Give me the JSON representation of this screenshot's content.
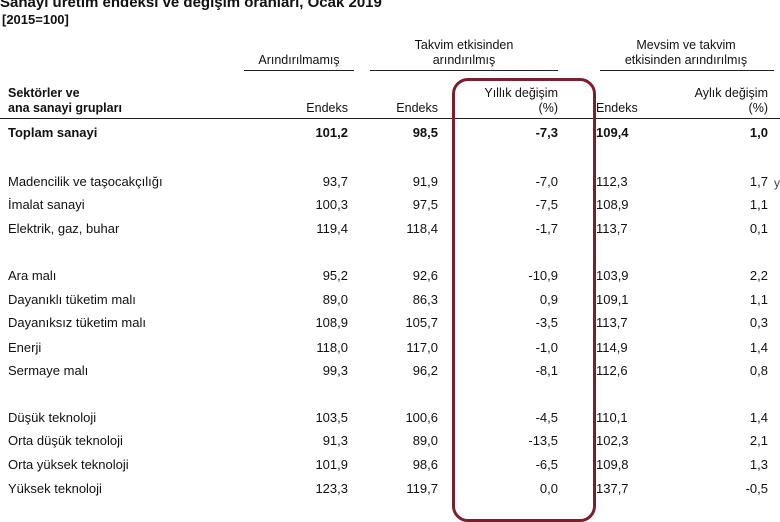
{
  "title": "Sanayi üretim endeksi ve değişim oranları, Ocak 2019",
  "subtitle": "[2015=100]",
  "groups": {
    "g1": "Arındırılmamış",
    "g2_line1": "Takvim etkisinden",
    "g2_line2": "arındırılmış",
    "g3_line1": "Mevsim ve takvim",
    "g3_line2": "etkisinden arındırılmış"
  },
  "columns": {
    "sector_line1": "Sektörler ve",
    "sector_line2": "ana sanayi grupları",
    "c1": "Endeks",
    "c2": "Endeks",
    "c3_line1": "Yıllık değişim",
    "c3_line2": "(%)",
    "c4": "Endeks",
    "c5_line1": "Aylık değişim",
    "c5_line2": "(%)"
  },
  "rows": [
    {
      "label": "Toplam sanayi",
      "v1": "101,2",
      "v2": "98,5",
      "v3": "-7,3",
      "v4": "109,4",
      "v5": "1,0",
      "bold": true
    },
    {
      "label": "Madencilik ve taşocakçılığı",
      "v1": "93,7",
      "v2": "91,9",
      "v3": "-7,0",
      "v4": "112,3",
      "v5": "1,7"
    },
    {
      "label": "İmalat sanayi",
      "v1": "100,3",
      "v2": "97,5",
      "v3": "-7,5",
      "v4": "108,9",
      "v5": "1,1"
    },
    {
      "label": "Elektrik, gaz, buhar",
      "v1": "119,4",
      "v2": "118,4",
      "v3": "-1,7",
      "v4": "113,7",
      "v5": "0,1"
    },
    {
      "label": "Ara malı",
      "v1": "95,2",
      "v2": "92,6",
      "v3": "-10,9",
      "v4": "103,9",
      "v5": "2,2"
    },
    {
      "label": "Dayanıklı tüketim malı",
      "v1": "89,0",
      "v2": "86,3",
      "v3": "0,9",
      "v4": "109,1",
      "v5": "1,1"
    },
    {
      "label": "Dayanıksız tüketim malı",
      "v1": "108,9",
      "v2": "105,7",
      "v3": "-3,5",
      "v4": "113,7",
      "v5": "0,3"
    },
    {
      "label": "Enerji",
      "v1": "118,0",
      "v2": "117,0",
      "v3": "-1,0",
      "v4": "114,9",
      "v5": "1,4"
    },
    {
      "label": "Sermaye malı",
      "v1": "99,3",
      "v2": "96,2",
      "v3": "-8,1",
      "v4": "112,6",
      "v5": "0,8"
    },
    {
      "label": "Düşük teknoloji",
      "v1": "103,5",
      "v2": "100,6",
      "v3": "-4,5",
      "v4": "110,1",
      "v5": "1,4"
    },
    {
      "label": "Orta düşük teknoloji",
      "v1": "91,3",
      "v2": "89,0",
      "v3": "-13,5",
      "v4": "102,3",
      "v5": "2,1"
    },
    {
      "label": "Orta yüksek teknoloji",
      "v1": "101,9",
      "v2": "98,6",
      "v3": "-6,5",
      "v4": "109,8",
      "v5": "1,3"
    },
    {
      "label": "Yüksek teknoloji",
      "v1": "123,3",
      "v2": "119,7",
      "v3": "0,0",
      "v4": "137,7",
      "v5": "-0,5"
    }
  ],
  "edge_glyph": "y",
  "highlight_color": "#7b1f2e"
}
